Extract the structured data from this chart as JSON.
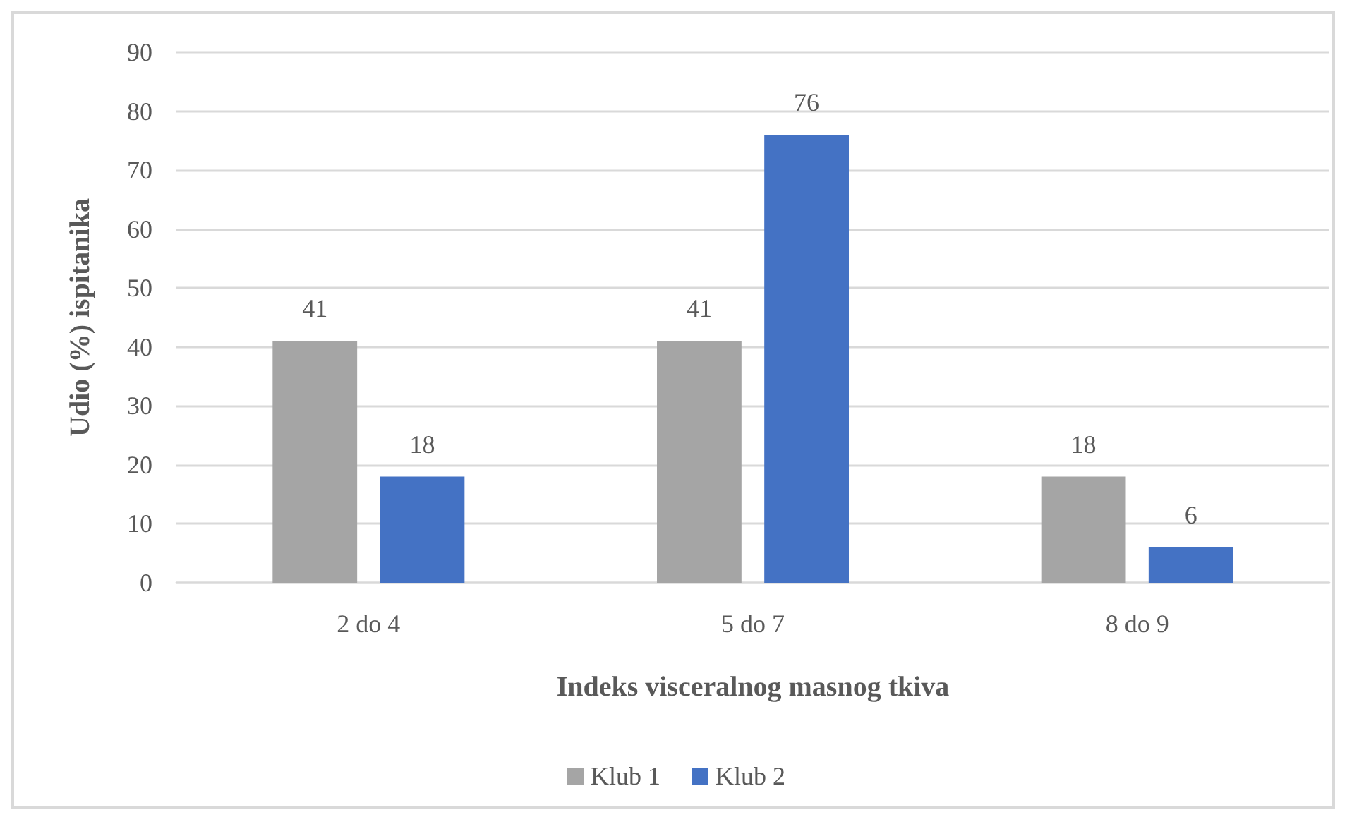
{
  "chart_data": {
    "type": "bar",
    "xlabel": "Indeks visceralnog masnog tkiva",
    "ylabel": "Udio (%) ispitanika",
    "categories": [
      "2 do 4",
      "5 do 7",
      "8 do 9"
    ],
    "series": [
      {
        "name": "Klub 1",
        "color": "#a5a5a5",
        "values": [
          41,
          41,
          18
        ]
      },
      {
        "name": "Klub 2",
        "color": "#4472c4",
        "values": [
          18,
          76,
          6
        ]
      }
    ],
    "ylim": [
      0,
      90
    ],
    "yticks": [
      0,
      10,
      20,
      30,
      40,
      50,
      60,
      70,
      80,
      90
    ],
    "grid": "y",
    "legend": "bottom",
    "data_labels": true
  }
}
